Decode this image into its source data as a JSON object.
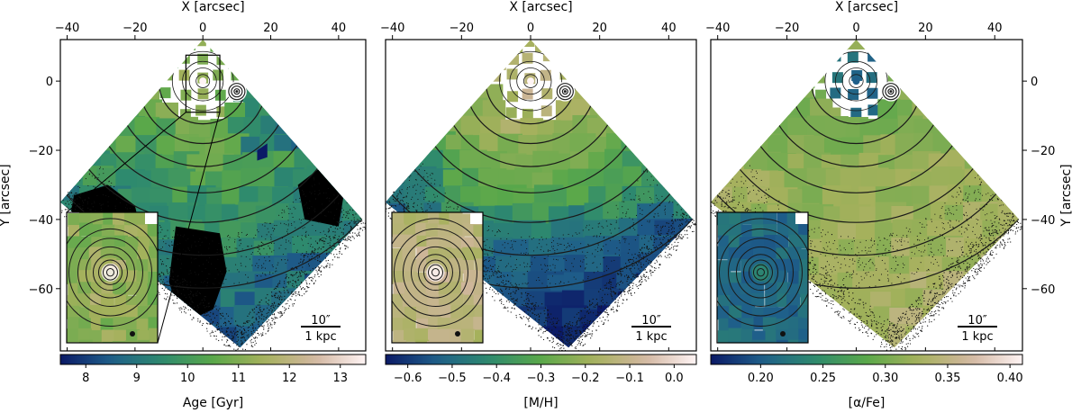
{
  "chart_data": [
    {
      "type": "heatmap",
      "panel": "left",
      "xlabel": "X [arcsec]",
      "ylabel": "Y [arcsec]",
      "xlim": [
        -42,
        48
      ],
      "ylim": [
        -78,
        12
      ],
      "xticks": [
        -40,
        -20,
        0,
        20,
        40
      ],
      "yticks": [
        0,
        -20,
        -40,
        -60
      ],
      "colorbar": {
        "label": "Age [Gyr]",
        "range": [
          7.5,
          13.5
        ],
        "ticks": [
          8,
          9,
          10,
          11,
          12,
          13
        ]
      },
      "inset": true,
      "scale_bar": {
        "angular": "10″",
        "physical": "1 kpc"
      },
      "masked_regions": true
    },
    {
      "type": "heatmap",
      "panel": "middle",
      "xlabel": "X [arcsec]",
      "ylabel": "",
      "xlim": [
        -42,
        48
      ],
      "ylim": [
        -78,
        12
      ],
      "xticks": [
        -40,
        -20,
        0,
        20,
        40
      ],
      "yticks": [],
      "colorbar": {
        "label": "[M/H]",
        "range": [
          -0.65,
          0.05
        ],
        "ticks": [
          -0.6,
          -0.5,
          -0.4,
          -0.3,
          -0.2,
          -0.1,
          0.0
        ]
      },
      "inset": true,
      "scale_bar": {
        "angular": "10″",
        "physical": "1 kpc"
      },
      "masked_regions": false
    },
    {
      "type": "heatmap",
      "panel": "right",
      "xlabel": "X [arcsec]",
      "ylabel": "Y [arcsec]",
      "ylabel_side": "right",
      "xlim": [
        -42,
        48
      ],
      "ylim": [
        -78,
        12
      ],
      "xticks": [
        -40,
        -20,
        0,
        20,
        40
      ],
      "yticks": [
        0,
        -20,
        -40,
        -60
      ],
      "colorbar": {
        "label": "[α/Fe]",
        "range": [
          0.16,
          0.41
        ],
        "ticks": [
          0.2,
          0.25,
          0.3,
          0.35,
          0.4
        ]
      },
      "inset": true,
      "scale_bar": {
        "angular": "10″",
        "physical": "1 kpc"
      },
      "masked_regions": false
    }
  ],
  "colors": {
    "cmap": [
      "#0b1a66",
      "#1f5f8a",
      "#2e8a6e",
      "#5aa84a",
      "#a5b15c",
      "#d2b6a0",
      "#fff4f4"
    ],
    "masked": "#000000",
    "contour": "#1a1a1a",
    "stars": "#111111",
    "frame": "#000000"
  }
}
